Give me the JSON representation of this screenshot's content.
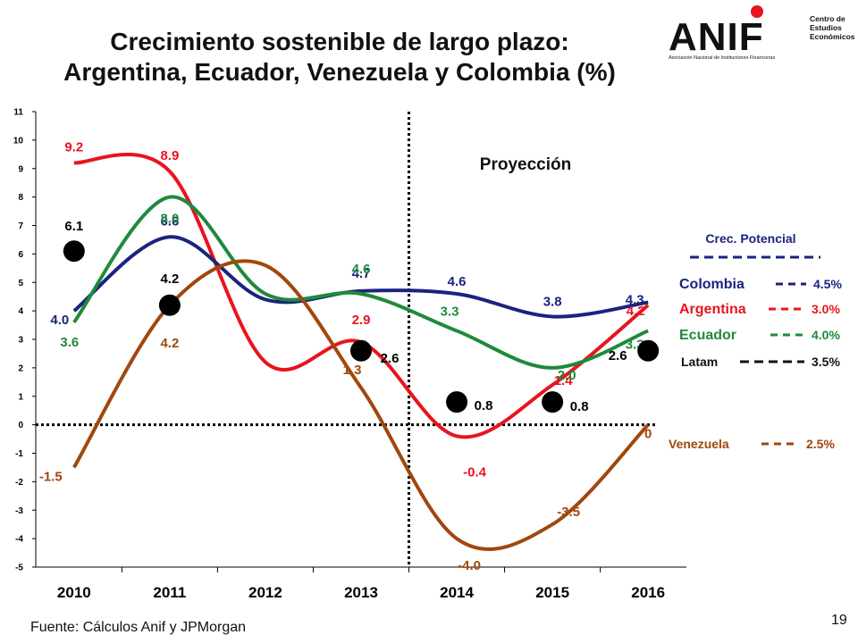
{
  "slide": {
    "title_line1": "Crecimiento sostenible de largo plazo:",
    "title_line2": "Argentina, Ecuador, Venezuela y Colombia (%)",
    "source": "Fuente: Cálculos Anif y  JPMorgan",
    "page_number": "19"
  },
  "logo": {
    "name": "ANIF",
    "subtitle": "Asociación Nacional de Instituciones Financieras",
    "side_text": [
      "Centro de",
      "Estudios",
      "Económicos"
    ],
    "dot_color": "#e8141e"
  },
  "chart_data": {
    "type": "line",
    "title": "",
    "xlabel": "",
    "ylabel": "",
    "ylim": [
      -5,
      11
    ],
    "y_ticks": [
      "-5",
      "-4",
      "-3",
      "-2",
      "-1",
      "0",
      "1",
      "2",
      "3",
      "4",
      "5",
      "6",
      "7",
      "8",
      "9",
      "10",
      "11"
    ],
    "categories": [
      "2010",
      "2011",
      "2012",
      "2013",
      "2014",
      "2015",
      "2016"
    ],
    "projection_label": "Proyección",
    "projection_start": 2013.5,
    "grid": false,
    "series": [
      {
        "name": "Argentina",
        "color": "#e8141e",
        "x": [
          2010,
          2011,
          2012,
          2013,
          2014,
          2015,
          2016
        ],
        "values": [
          9.2,
          8.9,
          2.2,
          2.9,
          -0.4,
          1.4,
          4.2
        ]
      },
      {
        "name": "Colombia",
        "color": "#1a237e",
        "x": [
          2010,
          2011,
          2012,
          2013,
          2014,
          2015,
          2016
        ],
        "values": [
          4.0,
          6.6,
          4.4,
          4.7,
          4.6,
          3.8,
          4.3
        ]
      },
      {
        "name": "Ecuador",
        "color": "#1f8a3a",
        "x": [
          2010,
          2011,
          2012,
          2013,
          2014,
          2015,
          2016
        ],
        "values": [
          3.6,
          8.0,
          4.6,
          4.6,
          3.3,
          2.0,
          3.3
        ]
      },
      {
        "name": "Venezuela",
        "color": "#a0470e",
        "x": [
          2010,
          2011,
          2012,
          2013,
          2014,
          2015,
          2016
        ],
        "values": [
          -1.5,
          4.2,
          5.6,
          1.3,
          -4.0,
          -3.5,
          0
        ]
      }
    ],
    "data_labels": [
      {
        "text": "9.2",
        "x": 2010,
        "value": 9.2,
        "color": "#e8141e"
      },
      {
        "text": "8.9",
        "x": 2011,
        "value": 8.9,
        "color": "#e8141e"
      },
      {
        "text": "2.9",
        "x": 2013,
        "value": 2.9,
        "color": "#e8141e"
      },
      {
        "text": "-0.4",
        "x": 2014,
        "value": -0.4,
        "color": "#e8141e"
      },
      {
        "text": "1.4",
        "x": 2015,
        "value": 1.4,
        "color": "#e8141e"
      },
      {
        "text": "4.2",
        "x": 2016,
        "value": 4.2,
        "color": "#e8141e"
      },
      {
        "text": "4.0",
        "x": 2010,
        "value": 4.0,
        "color": "#1a237e"
      },
      {
        "text": "6.6",
        "x": 2011,
        "value": 6.6,
        "color": "#1a237e"
      },
      {
        "text": "4.7",
        "x": 2013,
        "value": 4.7,
        "color": "#1a237e"
      },
      {
        "text": "4.6",
        "x": 2014,
        "value": 4.6,
        "color": "#1a237e"
      },
      {
        "text": "3.8",
        "x": 2015,
        "value": 3.8,
        "color": "#1a237e"
      },
      {
        "text": "4.3",
        "x": 2016,
        "value": 4.3,
        "color": "#1a237e"
      },
      {
        "text": "3.6",
        "x": 2010,
        "value": 3.6,
        "color": "#1f8a3a"
      },
      {
        "text": "8.0",
        "x": 2011,
        "value": 8.0,
        "color": "#1f8a3a"
      },
      {
        "text": "4.6",
        "x": 2013,
        "value": 4.6,
        "color": "#1f8a3a"
      },
      {
        "text": "3.3",
        "x": 2014,
        "value": 3.3,
        "color": "#1f8a3a"
      },
      {
        "text": "2.0",
        "x": 2015,
        "value": 2.0,
        "color": "#1f8a3a"
      },
      {
        "text": "3.3",
        "x": 2016,
        "value": 3.3,
        "color": "#1f8a3a"
      },
      {
        "text": "-1.5",
        "x": 2010,
        "value": -1.5,
        "color": "#a0470e"
      },
      {
        "text": "4.2",
        "x": 2011,
        "value": 4.2,
        "color": "#a0470e"
      },
      {
        "text": "1.3",
        "x": 2013,
        "value": 1.3,
        "color": "#a0470e"
      },
      {
        "text": "-4.0",
        "x": 2014,
        "value": -4.0,
        "color": "#a0470e"
      },
      {
        "text": "-3.5",
        "x": 2015,
        "value": -3.5,
        "color": "#a0470e"
      },
      {
        "text": "0",
        "x": 2016,
        "value": 0,
        "color": "#a0470e"
      }
    ],
    "latam_points": [
      {
        "text": "6.1",
        "x": 2010,
        "value": 6.1
      },
      {
        "text": "4.2",
        "x": 2011,
        "value": 4.2
      },
      {
        "text": "2.6",
        "x": 2013,
        "value": 2.6
      },
      {
        "text": "0.8",
        "x": 2014,
        "value": 0.8
      },
      {
        "text": "0.8",
        "x": 2015,
        "value": 0.8
      },
      {
        "text": "2.6",
        "x": 2016,
        "value": 2.6
      }
    ],
    "legend": {
      "title": "Crec. Potencial",
      "placement": "right",
      "entries": [
        {
          "name": "Colombia",
          "potential": "4.5%",
          "color": "#1a237e"
        },
        {
          "name": "Argentina",
          "potential": "3.0%",
          "color": "#e8141e"
        },
        {
          "name": "Ecuador",
          "potential": "4.0%",
          "color": "#1f8a3a"
        },
        {
          "name": "Latam",
          "potential": "3.5%",
          "color": "#111111"
        },
        {
          "name": "Venezuela",
          "potential": "2.5%",
          "color": "#a0470e"
        }
      ]
    }
  }
}
